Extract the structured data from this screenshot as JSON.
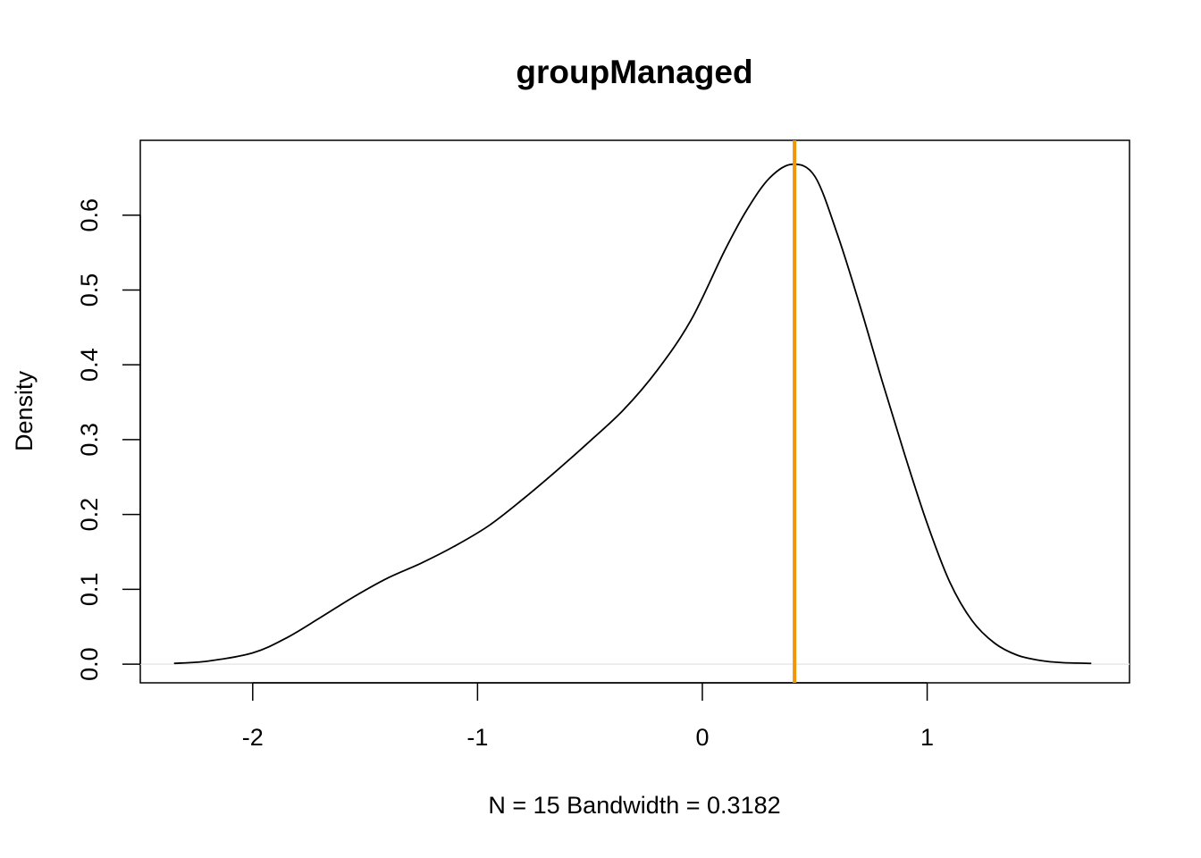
{
  "chart_data": {
    "type": "line",
    "title": "groupManaged",
    "xlabel": "N = 15   Bandwidth = 0.3182",
    "ylabel": "Density",
    "xlim": [
      -2.5,
      1.9
    ],
    "ylim": [
      -0.025,
      0.7
    ],
    "x_ticks": [
      -2,
      -1,
      0,
      1
    ],
    "x_tick_labels": [
      "-2",
      "-1",
      "0",
      "1"
    ],
    "y_ticks": [
      0.0,
      0.1,
      0.2,
      0.3,
      0.4,
      0.5,
      0.6
    ],
    "y_tick_labels": [
      "0.0",
      "0.1",
      "0.2",
      "0.3",
      "0.4",
      "0.5",
      "0.6"
    ],
    "grid": false,
    "baseline_y": 0,
    "series": [
      {
        "x": [
          -2.35,
          -2.2,
          -2.0,
          -1.85,
          -1.7,
          -1.55,
          -1.4,
          -1.25,
          -1.1,
          -0.95,
          -0.8,
          -0.65,
          -0.5,
          -0.35,
          -0.2,
          -0.05,
          0.1,
          0.2,
          0.3,
          0.4,
          0.5,
          0.6,
          0.7,
          0.8,
          0.9,
          1.0,
          1.1,
          1.2,
          1.3,
          1.4,
          1.5,
          1.6,
          1.73
        ],
        "y": [
          0.001,
          0.004,
          0.015,
          0.035,
          0.062,
          0.09,
          0.115,
          0.135,
          0.158,
          0.185,
          0.22,
          0.258,
          0.298,
          0.34,
          0.393,
          0.46,
          0.553,
          0.608,
          0.65,
          0.668,
          0.652,
          0.575,
          0.48,
          0.378,
          0.28,
          0.188,
          0.11,
          0.058,
          0.028,
          0.012,
          0.005,
          0.002,
          0.001
        ],
        "color": "#000000"
      }
    ],
    "vline": {
      "x": 0.41,
      "color": "#f0960a"
    },
    "baseline_color": "#e8e8e8"
  }
}
